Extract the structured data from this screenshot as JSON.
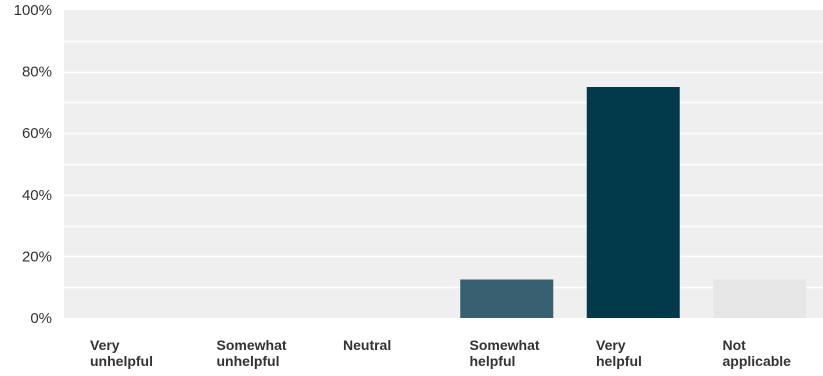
{
  "chart_data": {
    "type": "bar",
    "title": "",
    "xlabel": "",
    "ylabel": "",
    "categories": [
      [
        "Very",
        "unhelpful"
      ],
      [
        "Somewhat",
        "unhelpful"
      ],
      [
        "Neutral"
      ],
      [
        "Somewhat",
        "helpful"
      ],
      [
        "Very",
        "helpful"
      ],
      [
        "Not",
        "applicable"
      ]
    ],
    "values": [
      0,
      0,
      0,
      12.5,
      75,
      12.5
    ],
    "bar_colors": [
      "#6a8b97",
      "#4f7482",
      "#55717c",
      "#375f70",
      "#023a4a",
      "#e6e6e6"
    ],
    "ylim": [
      0,
      100
    ],
    "yticks": [
      0,
      20,
      40,
      60,
      80,
      100
    ],
    "ytick_labels": [
      "0%",
      "20%",
      "40%",
      "60%",
      "80%",
      "100%"
    ],
    "grid": true,
    "plot_background": "#efefef",
    "grid_color": "#ffffff",
    "legend": "none"
  }
}
